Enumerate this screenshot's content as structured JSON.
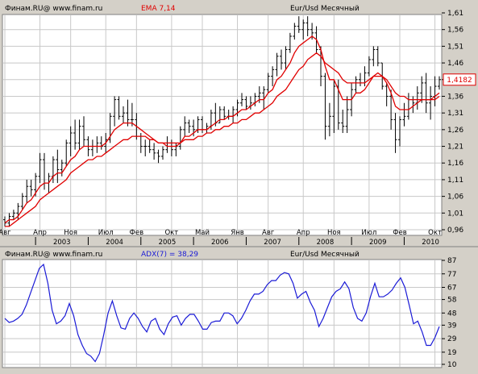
{
  "chart_data": [
    {
      "type": "ohlc",
      "source": "Финам.RU@  www.finam.ru",
      "indicator_label": "EMA 7,14",
      "instrument": "Eur/Usd Месячный",
      "price_tag": "1,4182",
      "ylim": [
        0.96,
        1.61
      ],
      "y_ticks": [
        "1,61",
        "1,56",
        "1,51",
        "1,46",
        "1,41",
        "1,36",
        "1,31",
        "1,26",
        "1,21",
        "1,16",
        "1,11",
        "1,06",
        "1,01",
        "0,96"
      ],
      "x_month_labels": [
        "Авг",
        "Апр",
        "Ноя",
        "Июл",
        "Фев",
        "Окт",
        "Май",
        "Янв",
        "Авг",
        "Апр",
        "Ноя",
        "Июл",
        "Фев",
        "Окт"
      ],
      "x_month_index": [
        0,
        8,
        15,
        23,
        30,
        38,
        45,
        53,
        60,
        68,
        75,
        83,
        90,
        98
      ],
      "x_year_labels": [
        "2003",
        "2004",
        "2005",
        "2006",
        "2007",
        "2008",
        "2009",
        "2010"
      ],
      "x_year_index": [
        13,
        25,
        37,
        49,
        61,
        73,
        85,
        97
      ],
      "bars": [
        {
          "o": 0.99,
          "h": 1.0,
          "l": 0.97,
          "c": 0.98
        },
        {
          "o": 0.98,
          "h": 1.01,
          "l": 0.97,
          "c": 1.0
        },
        {
          "o": 1.0,
          "h": 1.02,
          "l": 0.99,
          "c": 1.01
        },
        {
          "o": 1.01,
          "h": 1.04,
          "l": 0.99,
          "c": 1.03
        },
        {
          "o": 1.03,
          "h": 1.07,
          "l": 1.02,
          "c": 1.06
        },
        {
          "o": 1.06,
          "h": 1.11,
          "l": 1.04,
          "c": 1.09
        },
        {
          "o": 1.09,
          "h": 1.11,
          "l": 1.06,
          "c": 1.08
        },
        {
          "o": 1.08,
          "h": 1.13,
          "l": 1.06,
          "c": 1.12
        },
        {
          "o": 1.12,
          "h": 1.19,
          "l": 1.1,
          "c": 1.17
        },
        {
          "o": 1.17,
          "h": 1.19,
          "l": 1.08,
          "c": 1.1
        },
        {
          "o": 1.1,
          "h": 1.13,
          "l": 1.07,
          "c": 1.12
        },
        {
          "o": 1.12,
          "h": 1.18,
          "l": 1.1,
          "c": 1.17
        },
        {
          "o": 1.17,
          "h": 1.2,
          "l": 1.1,
          "c": 1.14
        },
        {
          "o": 1.14,
          "h": 1.17,
          "l": 1.12,
          "c": 1.16
        },
        {
          "o": 1.16,
          "h": 1.23,
          "l": 1.15,
          "c": 1.22
        },
        {
          "o": 1.22,
          "h": 1.27,
          "l": 1.18,
          "c": 1.25
        },
        {
          "o": 1.25,
          "h": 1.29,
          "l": 1.2,
          "c": 1.22
        },
        {
          "o": 1.22,
          "h": 1.29,
          "l": 1.2,
          "c": 1.27
        },
        {
          "o": 1.27,
          "h": 1.3,
          "l": 1.21,
          "c": 1.23
        },
        {
          "o": 1.23,
          "h": 1.24,
          "l": 1.18,
          "c": 1.2
        },
        {
          "o": 1.2,
          "h": 1.23,
          "l": 1.18,
          "c": 1.21
        },
        {
          "o": 1.21,
          "h": 1.24,
          "l": 1.19,
          "c": 1.22
        },
        {
          "o": 1.22,
          "h": 1.24,
          "l": 1.2,
          "c": 1.21
        },
        {
          "o": 1.21,
          "h": 1.25,
          "l": 1.19,
          "c": 1.23
        },
        {
          "o": 1.23,
          "h": 1.31,
          "l": 1.22,
          "c": 1.3
        },
        {
          "o": 1.3,
          "h": 1.36,
          "l": 1.27,
          "c": 1.35
        },
        {
          "o": 1.35,
          "h": 1.36,
          "l": 1.29,
          "c": 1.3
        },
        {
          "o": 1.3,
          "h": 1.33,
          "l": 1.28,
          "c": 1.31
        },
        {
          "o": 1.31,
          "h": 1.35,
          "l": 1.27,
          "c": 1.29
        },
        {
          "o": 1.29,
          "h": 1.34,
          "l": 1.27,
          "c": 1.29
        },
        {
          "o": 1.29,
          "h": 1.31,
          "l": 1.23,
          "c": 1.24
        },
        {
          "o": 1.24,
          "h": 1.25,
          "l": 1.19,
          "c": 1.21
        },
        {
          "o": 1.21,
          "h": 1.23,
          "l": 1.18,
          "c": 1.21
        },
        {
          "o": 1.21,
          "h": 1.23,
          "l": 1.19,
          "c": 1.2
        },
        {
          "o": 1.2,
          "h": 1.22,
          "l": 1.17,
          "c": 1.19
        },
        {
          "o": 1.19,
          "h": 1.2,
          "l": 1.16,
          "c": 1.18
        },
        {
          "o": 1.18,
          "h": 1.21,
          "l": 1.17,
          "c": 1.2
        },
        {
          "o": 1.2,
          "h": 1.24,
          "l": 1.19,
          "c": 1.21
        },
        {
          "o": 1.21,
          "h": 1.23,
          "l": 1.18,
          "c": 1.2
        },
        {
          "o": 1.2,
          "h": 1.22,
          "l": 1.18,
          "c": 1.21
        },
        {
          "o": 1.21,
          "h": 1.27,
          "l": 1.2,
          "c": 1.26
        },
        {
          "o": 1.26,
          "h": 1.3,
          "l": 1.24,
          "c": 1.28
        },
        {
          "o": 1.28,
          "h": 1.29,
          "l": 1.25,
          "c": 1.27
        },
        {
          "o": 1.27,
          "h": 1.29,
          "l": 1.24,
          "c": 1.26
        },
        {
          "o": 1.26,
          "h": 1.3,
          "l": 1.25,
          "c": 1.29
        },
        {
          "o": 1.29,
          "h": 1.3,
          "l": 1.25,
          "c": 1.26
        },
        {
          "o": 1.26,
          "h": 1.28,
          "l": 1.25,
          "c": 1.27
        },
        {
          "o": 1.27,
          "h": 1.32,
          "l": 1.26,
          "c": 1.31
        },
        {
          "o": 1.31,
          "h": 1.34,
          "l": 1.27,
          "c": 1.28
        },
        {
          "o": 1.28,
          "h": 1.33,
          "l": 1.28,
          "c": 1.32
        },
        {
          "o": 1.32,
          "h": 1.33,
          "l": 1.29,
          "c": 1.3
        },
        {
          "o": 1.3,
          "h": 1.32,
          "l": 1.29,
          "c": 1.3
        },
        {
          "o": 1.3,
          "h": 1.33,
          "l": 1.28,
          "c": 1.32
        },
        {
          "o": 1.32,
          "h": 1.35,
          "l": 1.3,
          "c": 1.34
        },
        {
          "o": 1.34,
          "h": 1.37,
          "l": 1.33,
          "c": 1.35
        },
        {
          "o": 1.35,
          "h": 1.36,
          "l": 1.32,
          "c": 1.33
        },
        {
          "o": 1.33,
          "h": 1.36,
          "l": 1.32,
          "c": 1.34
        },
        {
          "o": 1.34,
          "h": 1.37,
          "l": 1.33,
          "c": 1.36
        },
        {
          "o": 1.36,
          "h": 1.39,
          "l": 1.34,
          "c": 1.37
        },
        {
          "o": 1.37,
          "h": 1.39,
          "l": 1.32,
          "c": 1.38
        },
        {
          "o": 1.38,
          "h": 1.43,
          "l": 1.37,
          "c": 1.42
        },
        {
          "o": 1.42,
          "h": 1.45,
          "l": 1.39,
          "c": 1.44
        },
        {
          "o": 1.44,
          "h": 1.49,
          "l": 1.42,
          "c": 1.48
        },
        {
          "o": 1.48,
          "h": 1.5,
          "l": 1.44,
          "c": 1.46
        },
        {
          "o": 1.46,
          "h": 1.51,
          "l": 1.44,
          "c": 1.5
        },
        {
          "o": 1.5,
          "h": 1.55,
          "l": 1.49,
          "c": 1.54
        },
        {
          "o": 1.54,
          "h": 1.58,
          "l": 1.53,
          "c": 1.57
        },
        {
          "o": 1.57,
          "h": 1.6,
          "l": 1.55,
          "c": 1.56
        },
        {
          "o": 1.56,
          "h": 1.59,
          "l": 1.53,
          "c": 1.58
        },
        {
          "o": 1.58,
          "h": 1.6,
          "l": 1.54,
          "c": 1.56
        },
        {
          "o": 1.56,
          "h": 1.58,
          "l": 1.53,
          "c": 1.55
        },
        {
          "o": 1.55,
          "h": 1.57,
          "l": 1.49,
          "c": 1.5
        },
        {
          "o": 1.5,
          "h": 1.51,
          "l": 1.39,
          "c": 1.42
        },
        {
          "o": 1.42,
          "h": 1.43,
          "l": 1.23,
          "c": 1.27
        },
        {
          "o": 1.27,
          "h": 1.34,
          "l": 1.24,
          "c": 1.3
        },
        {
          "o": 1.3,
          "h": 1.41,
          "l": 1.25,
          "c": 1.39
        },
        {
          "o": 1.39,
          "h": 1.41,
          "l": 1.26,
          "c": 1.28
        },
        {
          "o": 1.28,
          "h": 1.32,
          "l": 1.25,
          "c": 1.27
        },
        {
          "o": 1.27,
          "h": 1.36,
          "l": 1.25,
          "c": 1.32
        },
        {
          "o": 1.32,
          "h": 1.4,
          "l": 1.3,
          "c": 1.38
        },
        {
          "o": 1.38,
          "h": 1.42,
          "l": 1.37,
          "c": 1.41
        },
        {
          "o": 1.41,
          "h": 1.43,
          "l": 1.39,
          "c": 1.4
        },
        {
          "o": 1.4,
          "h": 1.45,
          "l": 1.39,
          "c": 1.43
        },
        {
          "o": 1.43,
          "h": 1.48,
          "l": 1.42,
          "c": 1.47
        },
        {
          "o": 1.47,
          "h": 1.51,
          "l": 1.45,
          "c": 1.5
        },
        {
          "o": 1.5,
          "h": 1.51,
          "l": 1.45,
          "c": 1.46
        },
        {
          "o": 1.46,
          "h": 1.46,
          "l": 1.38,
          "c": 1.39
        },
        {
          "o": 1.39,
          "h": 1.4,
          "l": 1.33,
          "c": 1.36
        },
        {
          "o": 1.36,
          "h": 1.38,
          "l": 1.26,
          "c": 1.29
        },
        {
          "o": 1.29,
          "h": 1.31,
          "l": 1.19,
          "c": 1.23
        },
        {
          "o": 1.23,
          "h": 1.3,
          "l": 1.21,
          "c": 1.29
        },
        {
          "o": 1.29,
          "h": 1.34,
          "l": 1.27,
          "c": 1.3
        },
        {
          "o": 1.3,
          "h": 1.37,
          "l": 1.29,
          "c": 1.35
        },
        {
          "o": 1.35,
          "h": 1.36,
          "l": 1.31,
          "c": 1.34
        },
        {
          "o": 1.34,
          "h": 1.39,
          "l": 1.32,
          "c": 1.37
        },
        {
          "o": 1.37,
          "h": 1.42,
          "l": 1.34,
          "c": 1.4
        },
        {
          "o": 1.4,
          "h": 1.43,
          "l": 1.31,
          "c": 1.34
        },
        {
          "o": 1.34,
          "h": 1.39,
          "l": 1.29,
          "c": 1.36
        },
        {
          "o": 1.36,
          "h": 1.42,
          "l": 1.33,
          "c": 1.39
        },
        {
          "o": 1.39,
          "h": 1.42,
          "l": 1.38,
          "c": 1.41
        }
      ],
      "ema": [
        {
          "name": "EMA 7",
          "color": "#e00000",
          "values": [
            0.98,
            0.99,
            0.99,
            1.0,
            1.02,
            1.04,
            1.05,
            1.07,
            1.09,
            1.1,
            1.1,
            1.12,
            1.13,
            1.13,
            1.15,
            1.17,
            1.18,
            1.2,
            1.21,
            1.21,
            1.21,
            1.21,
            1.21,
            1.22,
            1.24,
            1.26,
            1.27,
            1.28,
            1.28,
            1.28,
            1.27,
            1.26,
            1.25,
            1.24,
            1.23,
            1.22,
            1.22,
            1.21,
            1.21,
            1.21,
            1.22,
            1.24,
            1.24,
            1.25,
            1.26,
            1.26,
            1.26,
            1.27,
            1.28,
            1.29,
            1.29,
            1.3,
            1.3,
            1.31,
            1.32,
            1.32,
            1.33,
            1.34,
            1.35,
            1.35,
            1.37,
            1.38,
            1.41,
            1.42,
            1.44,
            1.46,
            1.49,
            1.51,
            1.52,
            1.53,
            1.54,
            1.53,
            1.5,
            1.45,
            1.41,
            1.41,
            1.38,
            1.35,
            1.35,
            1.35,
            1.37,
            1.37,
            1.38,
            1.4,
            1.42,
            1.43,
            1.42,
            1.4,
            1.37,
            1.33,
            1.32,
            1.32,
            1.32,
            1.33,
            1.34,
            1.35,
            1.35,
            1.35,
            1.36,
            1.37
          ]
        },
        {
          "name": "EMA 14",
          "color": "#e00000",
          "values": [
            0.97,
            0.97,
            0.98,
            0.99,
            1.0,
            1.01,
            1.02,
            1.03,
            1.05,
            1.06,
            1.07,
            1.08,
            1.09,
            1.1,
            1.11,
            1.13,
            1.14,
            1.15,
            1.16,
            1.17,
            1.17,
            1.18,
            1.18,
            1.19,
            1.2,
            1.21,
            1.22,
            1.23,
            1.23,
            1.24,
            1.24,
            1.24,
            1.24,
            1.23,
            1.23,
            1.22,
            1.22,
            1.22,
            1.22,
            1.22,
            1.22,
            1.23,
            1.23,
            1.23,
            1.24,
            1.24,
            1.25,
            1.25,
            1.26,
            1.26,
            1.27,
            1.27,
            1.28,
            1.28,
            1.29,
            1.29,
            1.3,
            1.31,
            1.31,
            1.32,
            1.33,
            1.34,
            1.36,
            1.37,
            1.38,
            1.4,
            1.42,
            1.44,
            1.45,
            1.47,
            1.48,
            1.49,
            1.48,
            1.46,
            1.45,
            1.44,
            1.43,
            1.41,
            1.4,
            1.4,
            1.4,
            1.4,
            1.4,
            1.41,
            1.42,
            1.42,
            1.42,
            1.41,
            1.39,
            1.37,
            1.36,
            1.36,
            1.35,
            1.35,
            1.35,
            1.35,
            1.35,
            1.35,
            1.35,
            1.36
          ]
        }
      ]
    },
    {
      "type": "line",
      "source": "Финам.RU@  www.finam.ru",
      "indicator_label": "ADX(7) = 38,29",
      "instrument": "Eur/Usd Месячный",
      "ylim": [
        10,
        87
      ],
      "y_ticks": [
        "87",
        "77",
        "67",
        "58",
        "48",
        "39",
        "29",
        "19",
        "10"
      ],
      "y_tick_values": [
        87,
        77,
        67,
        58,
        48,
        39,
        29,
        19,
        10
      ],
      "series": [
        {
          "color": "#1a1ad6",
          "values": [
            44,
            41,
            42,
            44,
            47,
            54,
            63,
            72,
            81,
            84,
            70,
            50,
            40,
            42,
            46,
            55,
            46,
            32,
            24,
            18,
            16,
            12,
            18,
            32,
            48,
            57,
            46,
            37,
            36,
            44,
            48,
            44,
            38,
            34,
            42,
            44,
            36,
            32,
            40,
            45,
            46,
            39,
            44,
            47,
            47,
            42,
            36,
            36,
            41,
            42,
            42,
            48,
            48,
            46,
            40,
            44,
            50,
            57,
            62,
            62,
            64,
            69,
            72,
            72,
            76,
            78,
            77,
            70,
            59,
            62,
            64,
            56,
            50,
            38,
            44,
            52,
            60,
            64,
            66,
            71,
            66,
            52,
            44,
            42,
            48,
            60,
            70,
            60,
            60,
            62,
            65,
            70,
            74,
            67,
            54,
            40,
            42,
            34,
            24,
            24,
            30,
            38
          ]
        }
      ]
    }
  ]
}
